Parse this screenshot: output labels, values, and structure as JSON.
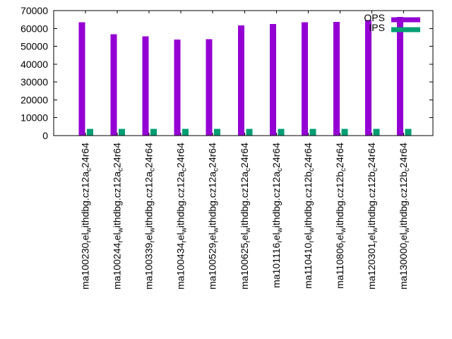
{
  "chart_data": {
    "type": "bar",
    "title": "",
    "categories": [
      "ma100230_rel_withdbg.cz12a_c24r64",
      "ma100244_rel_withdbg.cz12a_c24r64",
      "ma100339_rel_withdbg.cz12a_c24r64",
      "ma100434_rel_withdbg.cz12a_c24r64",
      "ma100529_rel_withdbg.cz12a_c24r64",
      "ma100625_rel_withdbg.cz12a_c24r64",
      "ma101116_rel_withdbg.cz12a_c24r64",
      "ma110410_rel_withdbg.cz12b_c24r64",
      "ma110806_rel_withdbg.cz12b_c24r64",
      "ma120301_rel_withdbg.cz12b_c24r64",
      "ma130000_rel_withdbg.cz12b_c24r64"
    ],
    "subscript_marker": "_",
    "series": [
      {
        "name": "OPS",
        "color": "#9400d3",
        "values": [
          63400,
          56800,
          55500,
          53800,
          53900,
          61700,
          62500,
          63400,
          63700,
          64700,
          66400
        ]
      },
      {
        "name": "IPS",
        "color": "#009e73",
        "values": [
          3700,
          3700,
          3700,
          3700,
          3700,
          3700,
          3700,
          3700,
          3700,
          3700,
          3700
        ]
      }
    ],
    "ylim": [
      0,
      70000
    ],
    "yticks": [
      0,
      10000,
      20000,
      30000,
      40000,
      50000,
      60000,
      70000
    ],
    "legend": {
      "position": "top-right",
      "entries": [
        "OPS",
        "IPS"
      ]
    },
    "grid": false,
    "axis_color": "#000000",
    "text_color": "#000000",
    "background_color": "#ffffff"
  }
}
